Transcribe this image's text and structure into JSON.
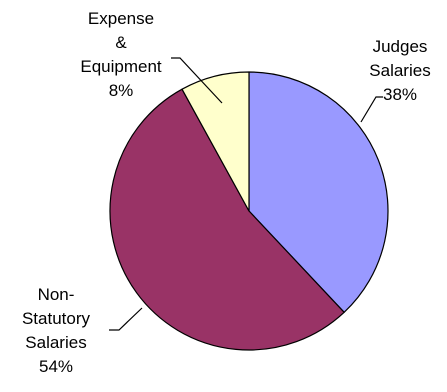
{
  "chart_data": {
    "type": "pie",
    "slices": [
      {
        "label_lines": [
          "Judges",
          "Salaries",
          "38%"
        ],
        "category": "Judges Salaries",
        "value": 38,
        "color": "#9999ff"
      },
      {
        "label_lines": [
          "Non-",
          "Statutory",
          "Salaries",
          "54%"
        ],
        "category": "Non-Statutory Salaries",
        "value": 54,
        "color": "#993366"
      },
      {
        "label_lines": [
          "Expense",
          "&",
          "Equipment",
          "8%"
        ],
        "category": "Expense & Equipment",
        "value": 8,
        "color": "#ffffcc"
      }
    ],
    "start_angle_deg": 0,
    "direction": "clockwise",
    "legend": "none",
    "edge_color": "#000000"
  }
}
